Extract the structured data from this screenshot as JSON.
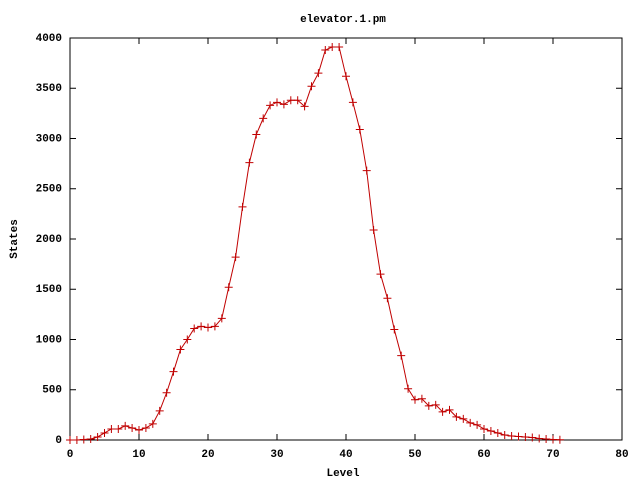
{
  "chart_data": {
    "type": "line",
    "title": "elevator.1.pm",
    "x_label": "Level",
    "y_label": "States",
    "x": [
      0,
      1,
      2,
      3,
      4,
      5,
      6,
      7,
      8,
      9,
      10,
      11,
      12,
      13,
      14,
      15,
      16,
      17,
      18,
      19,
      20,
      21,
      22,
      23,
      24,
      25,
      26,
      27,
      28,
      29,
      30,
      31,
      32,
      33,
      34,
      35,
      36,
      37,
      38,
      39,
      40,
      41,
      42,
      43,
      44,
      45,
      46,
      47,
      48,
      49,
      50,
      51,
      52,
      53,
      54,
      55,
      56,
      57,
      58,
      59,
      60,
      61,
      62,
      63,
      64,
      65,
      66,
      67,
      68,
      69,
      70,
      71
    ],
    "series": [
      {
        "color": "#c00000",
        "values": [
          0,
          0,
          5,
          10,
          30,
          70,
          110,
          110,
          140,
          120,
          100,
          120,
          160,
          290,
          470,
          680,
          900,
          1000,
          1110,
          1130,
          1120,
          1130,
          1210,
          1520,
          1820,
          2320,
          2760,
          3040,
          3200,
          3330,
          3360,
          3340,
          3380,
          3380,
          3320,
          3520,
          3650,
          3880,
          3910,
          3910,
          3620,
          3360,
          3090,
          2680,
          2090,
          1650,
          1410,
          1100,
          840,
          510,
          400,
          410,
          340,
          350,
          280,
          300,
          230,
          210,
          170,
          150,
          110,
          90,
          70,
          50,
          40,
          35,
          30,
          25,
          15,
          10,
          5,
          2
        ]
      }
    ],
    "xlim": [
      0,
      80
    ],
    "xticks": [
      0,
      10,
      20,
      30,
      40,
      50,
      60,
      70,
      80
    ],
    "ylim": [
      0,
      4000
    ],
    "yticks": [
      0,
      500,
      1000,
      1500,
      2000,
      2500,
      3000,
      3500,
      4000
    ]
  }
}
